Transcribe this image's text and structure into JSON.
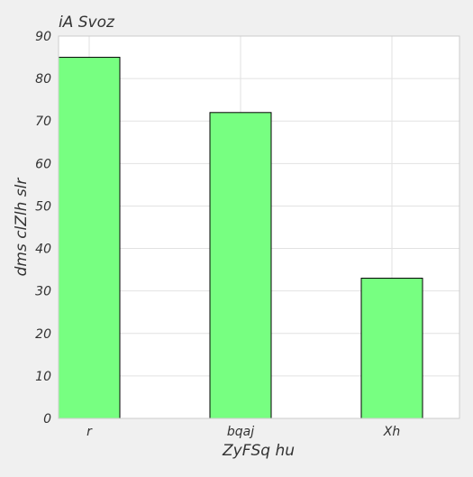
{
  "chart_data": {
    "type": "bar",
    "title": "iA Svoz",
    "xlabel": "ZyFSq hu",
    "ylabel": "dms clZlh slr",
    "categories": [
      "r",
      "bqaj",
      "Xh"
    ],
    "values": [
      85,
      72,
      33
    ],
    "ylim": [
      0,
      90
    ],
    "yticks": [
      0,
      10,
      20,
      30,
      40,
      50,
      60,
      70,
      80,
      90
    ],
    "grid": true,
    "bar_color": "#77ff81",
    "bar_edge_color": "#000000",
    "background_color": "#f0f0f0",
    "plot_background_color": "#ffffff"
  }
}
